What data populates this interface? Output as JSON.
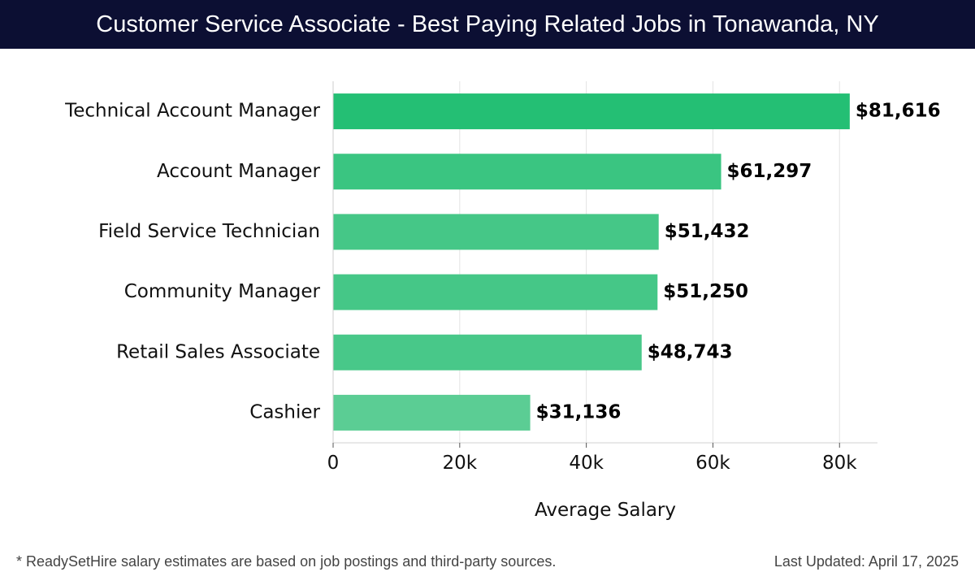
{
  "header": {
    "title": "Customer Service Associate - Best Paying Related Jobs in Tonawanda, NY"
  },
  "footer": {
    "note": "* ReadySetHire salary estimates are based on job postings and third-party sources.",
    "updated": "Last Updated: April 17, 2025"
  },
  "colors": {
    "title_bar": "#0c0f33",
    "bar_darkest": "#24bf74",
    "bar_lightest": "#5bcd94"
  },
  "chart_data": {
    "type": "bar",
    "orientation": "horizontal",
    "categories": [
      "Technical Account Manager",
      "Account Manager",
      "Field Service Technician",
      "Community Manager",
      "Retail Sales Associate",
      "Cashier"
    ],
    "values": [
      81616,
      61297,
      51432,
      51250,
      48743,
      31136
    ],
    "value_labels": [
      "$81,616",
      "$61,297",
      "$51,432",
      "$51,250",
      "$48,743",
      "$31,136"
    ],
    "xlabel": "Average Salary",
    "ylabel": "",
    "xlim": [
      0,
      86000
    ],
    "xticks": [
      0,
      20000,
      40000,
      60000,
      80000
    ],
    "xtick_labels": [
      "0",
      "20k",
      "40k",
      "60k",
      "80k"
    ],
    "grid": true
  }
}
